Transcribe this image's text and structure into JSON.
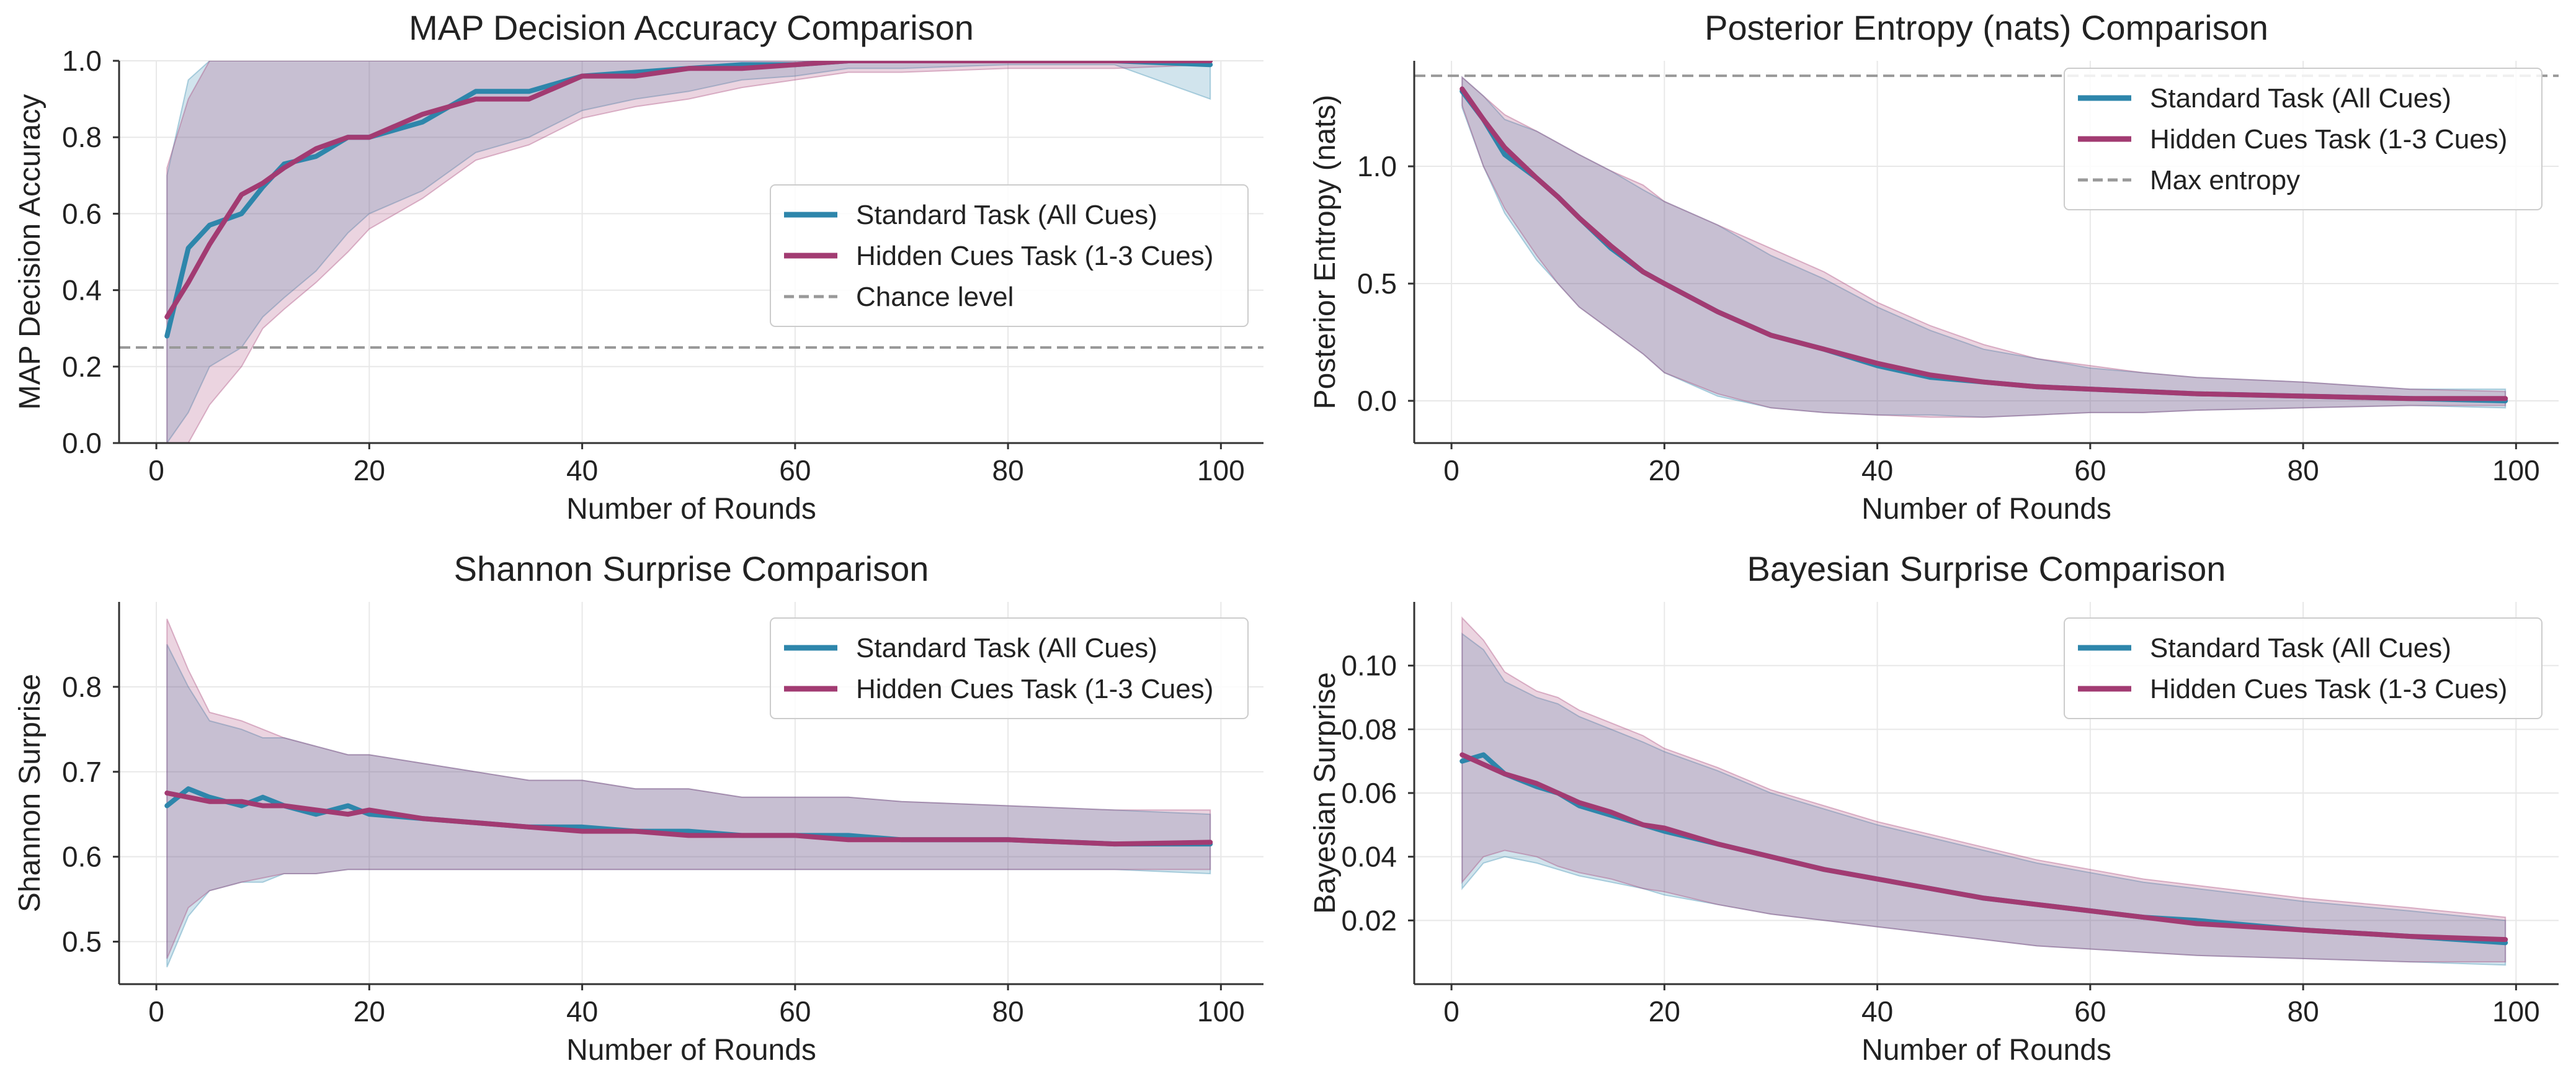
{
  "figure": {
    "background": "#ffffff"
  },
  "colors": {
    "standard": "#2e86ab",
    "hidden": "#a23b72",
    "reference": "#999999",
    "grid": "#e8e8e8",
    "axis": "#333333"
  },
  "chart_data": [
    {
      "type": "line",
      "title": "MAP Decision Accuracy Comparison",
      "xlabel": "Number of Rounds",
      "ylabel": "MAP Decision Accuracy",
      "xlim": [
        -3.5,
        104
      ],
      "ylim": [
        0.0,
        1.0
      ],
      "xticks": [
        0,
        20,
        40,
        60,
        80,
        100
      ],
      "yticks": [
        0.0,
        0.2,
        0.4,
        0.6,
        0.8,
        1.0
      ],
      "ytick_labels": [
        "0.0",
        "0.2",
        "0.4",
        "0.6",
        "0.8",
        "1.0"
      ],
      "legend_position": "center-right",
      "series": [
        {
          "name": "Standard Task (All Cues)",
          "key": "standard",
          "x": [
            1,
            3,
            5,
            8,
            10,
            12,
            15,
            18,
            20,
            25,
            30,
            35,
            40,
            45,
            50,
            55,
            60,
            65,
            70,
            80,
            90,
            99
          ],
          "values": [
            0.28,
            0.51,
            0.57,
            0.6,
            0.67,
            0.73,
            0.75,
            0.8,
            0.8,
            0.84,
            0.92,
            0.92,
            0.96,
            0.97,
            0.98,
            0.99,
            0.99,
            1.0,
            1.0,
            1.0,
            1.0,
            0.99
          ],
          "band_low": [
            0.0,
            0.08,
            0.2,
            0.25,
            0.33,
            0.38,
            0.45,
            0.55,
            0.6,
            0.66,
            0.76,
            0.8,
            0.87,
            0.9,
            0.92,
            0.95,
            0.96,
            0.98,
            0.98,
            0.99,
            0.99,
            0.9
          ],
          "band_high": [
            0.7,
            0.95,
            1.0,
            1.0,
            1.0,
            1.0,
            1.0,
            1.0,
            1.0,
            1.0,
            1.0,
            1.0,
            1.0,
            1.0,
            1.0,
            1.0,
            1.0,
            1.0,
            1.0,
            1.0,
            1.0,
            1.0
          ]
        },
        {
          "name": "Hidden Cues Task (1-3 Cues)",
          "key": "hidden",
          "x": [
            1,
            3,
            5,
            8,
            10,
            12,
            15,
            18,
            20,
            25,
            30,
            35,
            40,
            45,
            50,
            55,
            60,
            65,
            70,
            80,
            90,
            99
          ],
          "values": [
            0.33,
            0.42,
            0.52,
            0.65,
            0.68,
            0.72,
            0.77,
            0.8,
            0.8,
            0.86,
            0.9,
            0.9,
            0.96,
            0.96,
            0.98,
            0.98,
            0.99,
            1.0,
            1.0,
            1.0,
            1.0,
            1.0
          ],
          "band_low": [
            0.0,
            0.0,
            0.1,
            0.2,
            0.3,
            0.35,
            0.42,
            0.5,
            0.56,
            0.64,
            0.74,
            0.78,
            0.85,
            0.88,
            0.9,
            0.93,
            0.95,
            0.97,
            0.97,
            0.98,
            0.98,
            0.99
          ],
          "band_high": [
            0.72,
            0.9,
            1.0,
            1.0,
            1.0,
            1.0,
            1.0,
            1.0,
            1.0,
            1.0,
            1.0,
            1.0,
            1.0,
            1.0,
            1.0,
            1.0,
            1.0,
            1.0,
            1.0,
            1.0,
            1.0,
            1.0
          ]
        }
      ],
      "reference_line": {
        "name": "Chance level",
        "y": 0.25
      }
    },
    {
      "type": "line",
      "title": "Posterior Entropy (nats) Comparison",
      "xlabel": "Number of Rounds",
      "ylabel": "Posterior Entropy (nats)",
      "xlim": [
        -3.5,
        104
      ],
      "ylim": [
        -0.18,
        1.45
      ],
      "xticks": [
        0,
        20,
        40,
        60,
        80,
        100
      ],
      "yticks": [
        0.0,
        0.5,
        1.0
      ],
      "ytick_labels": [
        "0.0",
        "0.5",
        "1.0"
      ],
      "legend_position": "top-right",
      "series": [
        {
          "name": "Standard Task (All Cues)",
          "key": "standard",
          "x": [
            1,
            3,
            5,
            8,
            10,
            12,
            15,
            18,
            20,
            25,
            30,
            35,
            40,
            45,
            50,
            55,
            60,
            65,
            70,
            80,
            90,
            99
          ],
          "values": [
            1.32,
            1.2,
            1.05,
            0.95,
            0.87,
            0.78,
            0.65,
            0.55,
            0.5,
            0.38,
            0.28,
            0.22,
            0.15,
            0.1,
            0.08,
            0.06,
            0.05,
            0.04,
            0.03,
            0.02,
            0.01,
            0.0
          ],
          "band_low": [
            1.25,
            1.0,
            0.8,
            0.6,
            0.5,
            0.4,
            0.3,
            0.2,
            0.12,
            0.02,
            -0.03,
            -0.05,
            -0.06,
            -0.06,
            -0.07,
            -0.06,
            -0.05,
            -0.05,
            -0.04,
            -0.03,
            -0.02,
            -0.03
          ],
          "band_high": [
            1.38,
            1.3,
            1.2,
            1.15,
            1.1,
            1.05,
            0.98,
            0.9,
            0.85,
            0.75,
            0.62,
            0.52,
            0.4,
            0.3,
            0.22,
            0.18,
            0.14,
            0.12,
            0.1,
            0.08,
            0.05,
            0.05
          ]
        },
        {
          "name": "Hidden Cues Task (1-3 Cues)",
          "key": "hidden",
          "x": [
            1,
            3,
            5,
            8,
            10,
            12,
            15,
            18,
            20,
            25,
            30,
            35,
            40,
            45,
            50,
            55,
            60,
            65,
            70,
            80,
            90,
            99
          ],
          "values": [
            1.33,
            1.2,
            1.08,
            0.95,
            0.87,
            0.78,
            0.66,
            0.55,
            0.5,
            0.38,
            0.28,
            0.22,
            0.16,
            0.11,
            0.08,
            0.06,
            0.05,
            0.04,
            0.03,
            0.02,
            0.01,
            0.01
          ],
          "band_low": [
            1.26,
            1.0,
            0.82,
            0.62,
            0.5,
            0.4,
            0.3,
            0.2,
            0.12,
            0.03,
            -0.03,
            -0.05,
            -0.06,
            -0.07,
            -0.07,
            -0.06,
            -0.05,
            -0.05,
            -0.04,
            -0.03,
            -0.02,
            -0.02
          ],
          "band_high": [
            1.38,
            1.3,
            1.22,
            1.15,
            1.1,
            1.05,
            0.98,
            0.92,
            0.85,
            0.75,
            0.65,
            0.55,
            0.42,
            0.32,
            0.24,
            0.18,
            0.15,
            0.12,
            0.1,
            0.08,
            0.05,
            0.04
          ]
        }
      ],
      "reference_line": {
        "name": "Max entropy",
        "y": 1.386
      }
    },
    {
      "type": "line",
      "title": "Shannon Surprise Comparison",
      "xlabel": "Number of Rounds",
      "ylabel": "Shannon Surprise",
      "xlim": [
        -3.5,
        104
      ],
      "ylim": [
        0.45,
        0.9
      ],
      "xticks": [
        0,
        20,
        40,
        60,
        80,
        100
      ],
      "yticks": [
        0.5,
        0.6,
        0.7,
        0.8
      ],
      "ytick_labels": [
        "0.5",
        "0.6",
        "0.7",
        "0.8"
      ],
      "legend_position": "top-right",
      "series": [
        {
          "name": "Standard Task (All Cues)",
          "key": "standard",
          "x": [
            1,
            3,
            5,
            8,
            10,
            12,
            15,
            18,
            20,
            25,
            30,
            35,
            40,
            45,
            50,
            55,
            60,
            65,
            70,
            80,
            90,
            99
          ],
          "values": [
            0.66,
            0.68,
            0.67,
            0.66,
            0.67,
            0.66,
            0.65,
            0.66,
            0.65,
            0.645,
            0.64,
            0.635,
            0.635,
            0.63,
            0.63,
            0.625,
            0.625,
            0.625,
            0.62,
            0.62,
            0.615,
            0.615
          ],
          "band_low": [
            0.47,
            0.53,
            0.56,
            0.57,
            0.57,
            0.58,
            0.58,
            0.585,
            0.585,
            0.585,
            0.585,
            0.585,
            0.585,
            0.585,
            0.585,
            0.585,
            0.585,
            0.585,
            0.585,
            0.585,
            0.585,
            0.58
          ],
          "band_high": [
            0.85,
            0.8,
            0.76,
            0.75,
            0.74,
            0.74,
            0.73,
            0.72,
            0.72,
            0.71,
            0.7,
            0.69,
            0.69,
            0.68,
            0.68,
            0.67,
            0.67,
            0.67,
            0.665,
            0.66,
            0.655,
            0.65
          ]
        },
        {
          "name": "Hidden Cues Task (1-3 Cues)",
          "key": "hidden",
          "x": [
            1,
            3,
            5,
            8,
            10,
            12,
            15,
            18,
            20,
            25,
            30,
            35,
            40,
            45,
            50,
            55,
            60,
            65,
            70,
            80,
            90,
            99
          ],
          "values": [
            0.675,
            0.67,
            0.665,
            0.665,
            0.66,
            0.66,
            0.655,
            0.65,
            0.655,
            0.645,
            0.64,
            0.635,
            0.63,
            0.63,
            0.625,
            0.625,
            0.625,
            0.62,
            0.62,
            0.62,
            0.615,
            0.617
          ],
          "band_low": [
            0.48,
            0.54,
            0.56,
            0.57,
            0.575,
            0.58,
            0.58,
            0.585,
            0.585,
            0.585,
            0.585,
            0.585,
            0.585,
            0.585,
            0.585,
            0.585,
            0.585,
            0.585,
            0.585,
            0.585,
            0.585,
            0.585
          ],
          "band_high": [
            0.88,
            0.82,
            0.77,
            0.76,
            0.75,
            0.74,
            0.73,
            0.72,
            0.72,
            0.71,
            0.7,
            0.69,
            0.69,
            0.68,
            0.68,
            0.67,
            0.67,
            0.67,
            0.665,
            0.66,
            0.655,
            0.655
          ]
        }
      ]
    },
    {
      "type": "line",
      "title": "Bayesian Surprise Comparison",
      "xlabel": "Number of Rounds",
      "ylabel": "Bayesian Surprise",
      "xlim": [
        -3.5,
        104
      ],
      "ylim": [
        0.0,
        0.12
      ],
      "xticks": [
        0,
        20,
        40,
        60,
        80,
        100
      ],
      "yticks": [
        0.02,
        0.04,
        0.06,
        0.08,
        0.1
      ],
      "ytick_labels": [
        "0.02",
        "0.04",
        "0.06",
        "0.08",
        "0.10"
      ],
      "legend_position": "top-right",
      "series": [
        {
          "name": "Standard Task (All Cues)",
          "key": "standard",
          "x": [
            1,
            3,
            5,
            8,
            10,
            12,
            15,
            18,
            20,
            25,
            30,
            35,
            40,
            45,
            50,
            55,
            60,
            65,
            70,
            80,
            90,
            99
          ],
          "values": [
            0.07,
            0.072,
            0.066,
            0.062,
            0.06,
            0.056,
            0.053,
            0.05,
            0.048,
            0.044,
            0.04,
            0.036,
            0.033,
            0.03,
            0.027,
            0.025,
            0.023,
            0.021,
            0.02,
            0.017,
            0.015,
            0.013
          ],
          "band_low": [
            0.03,
            0.038,
            0.04,
            0.038,
            0.036,
            0.034,
            0.032,
            0.03,
            0.028,
            0.025,
            0.022,
            0.02,
            0.018,
            0.016,
            0.014,
            0.012,
            0.011,
            0.01,
            0.009,
            0.008,
            0.007,
            0.006
          ],
          "band_high": [
            0.11,
            0.105,
            0.095,
            0.09,
            0.088,
            0.084,
            0.08,
            0.076,
            0.073,
            0.067,
            0.06,
            0.055,
            0.05,
            0.046,
            0.042,
            0.038,
            0.035,
            0.032,
            0.03,
            0.026,
            0.023,
            0.02
          ]
        },
        {
          "name": "Hidden Cues Task (1-3 Cues)",
          "key": "hidden",
          "x": [
            1,
            3,
            5,
            8,
            10,
            12,
            15,
            18,
            20,
            25,
            30,
            35,
            40,
            45,
            50,
            55,
            60,
            65,
            70,
            80,
            90,
            99
          ],
          "values": [
            0.072,
            0.069,
            0.066,
            0.063,
            0.06,
            0.057,
            0.054,
            0.05,
            0.049,
            0.044,
            0.04,
            0.036,
            0.033,
            0.03,
            0.027,
            0.025,
            0.023,
            0.021,
            0.019,
            0.017,
            0.015,
            0.014
          ],
          "band_low": [
            0.032,
            0.04,
            0.042,
            0.04,
            0.037,
            0.035,
            0.033,
            0.03,
            0.029,
            0.025,
            0.022,
            0.02,
            0.018,
            0.016,
            0.014,
            0.012,
            0.011,
            0.01,
            0.009,
            0.008,
            0.007,
            0.007
          ],
          "band_high": [
            0.115,
            0.108,
            0.098,
            0.092,
            0.09,
            0.086,
            0.082,
            0.078,
            0.074,
            0.068,
            0.061,
            0.056,
            0.051,
            0.047,
            0.043,
            0.039,
            0.036,
            0.033,
            0.031,
            0.027,
            0.024,
            0.021
          ]
        }
      ]
    }
  ]
}
